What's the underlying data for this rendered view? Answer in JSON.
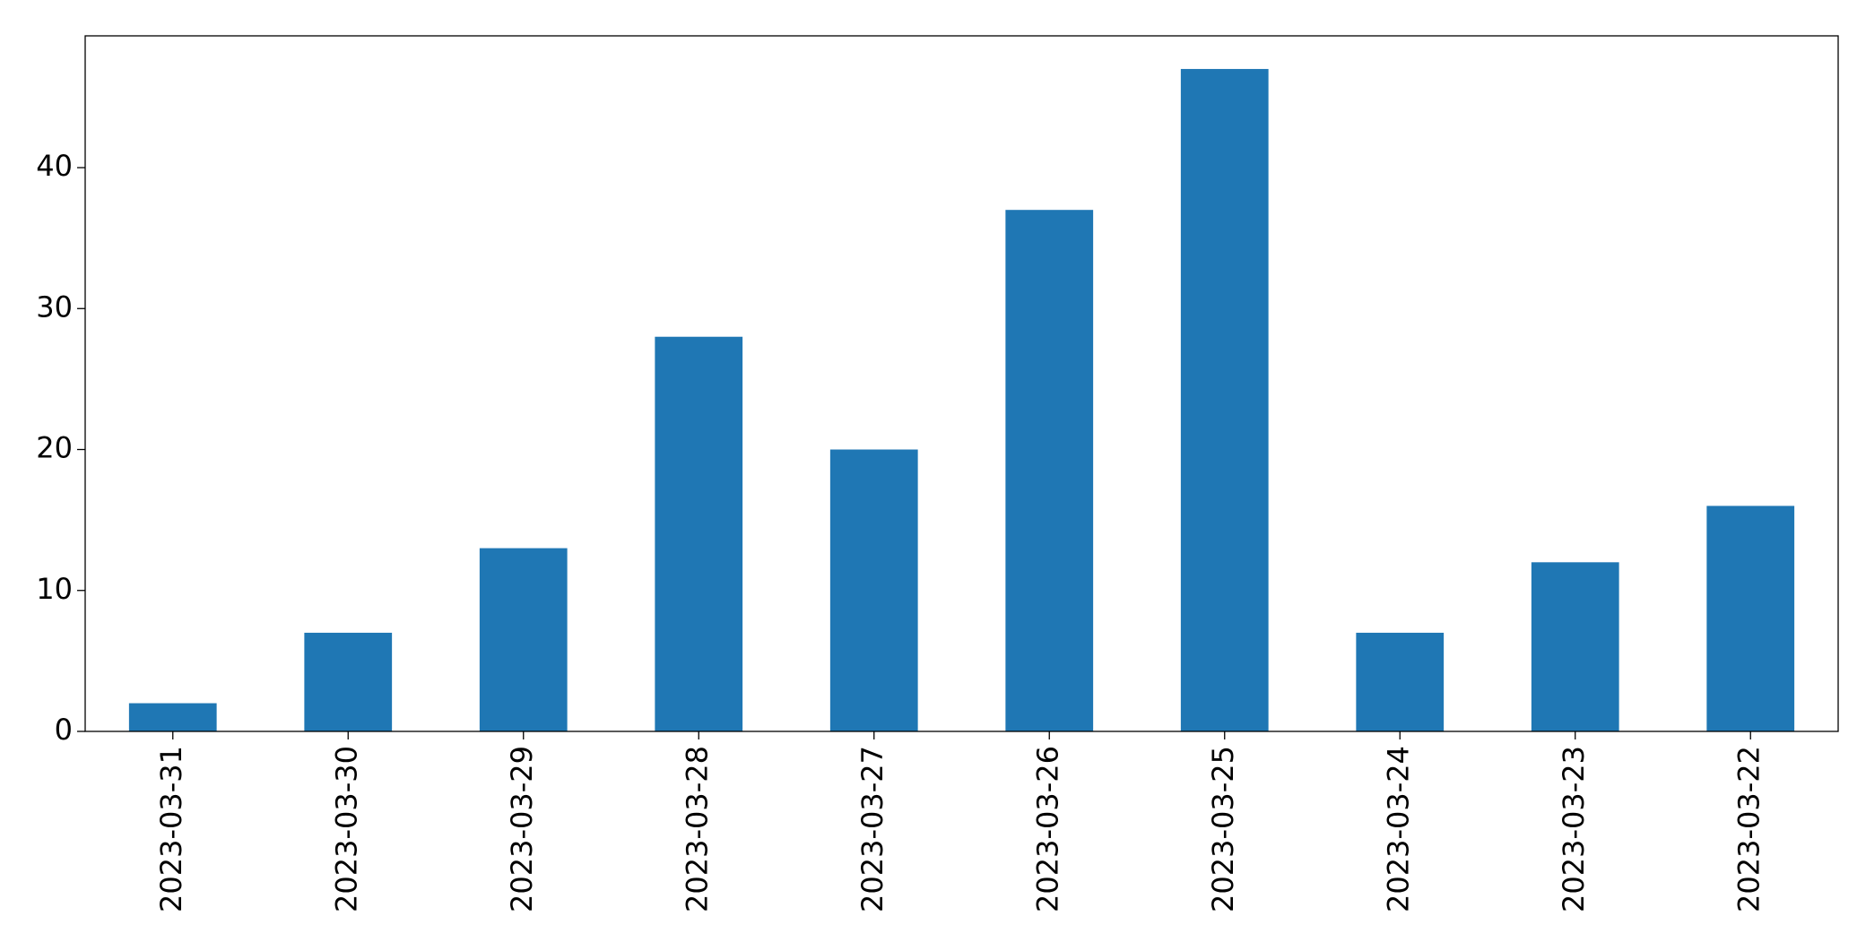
{
  "chart_data": {
    "type": "bar",
    "categories": [
      "2023-03-31",
      "2023-03-30",
      "2023-03-29",
      "2023-03-28",
      "2023-03-27",
      "2023-03-26",
      "2023-03-25",
      "2023-03-24",
      "2023-03-23",
      "2023-03-22"
    ],
    "values": [
      2,
      7,
      13,
      28,
      20,
      37,
      47,
      7,
      12,
      16
    ],
    "color": "#1f77b4",
    "ylim": [
      0,
      49.35
    ],
    "yticks": [
      0,
      10,
      20,
      30,
      40
    ],
    "grid": false
  }
}
